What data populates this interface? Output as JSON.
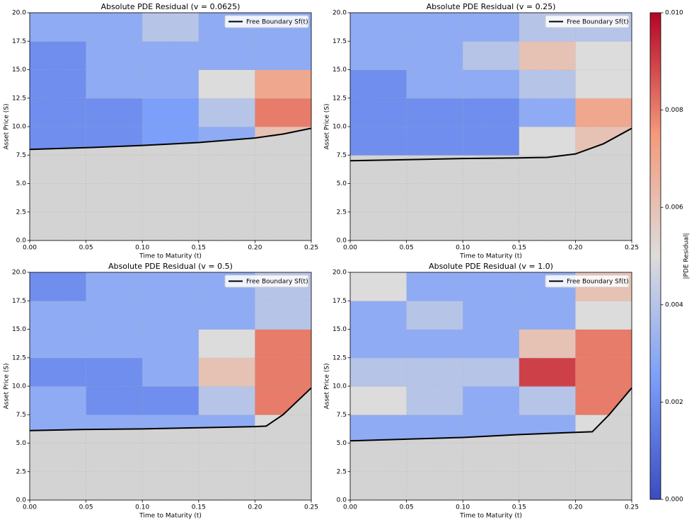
{
  "chart_data": [
    {
      "type": "heatmap",
      "title": "Absolute PDE Residual (v = 0.0625)",
      "xlabel": "Time to Maturity (t)",
      "ylabel": "Asset Price (S)",
      "x_bins": [
        0,
        0.05,
        0.1,
        0.15,
        0.2,
        0.25
      ],
      "y_bins": [
        0,
        2.5,
        5,
        7.5,
        10,
        12.5,
        15,
        17.5,
        20
      ],
      "z": [
        [
          null,
          null,
          null,
          null,
          null
        ],
        [
          null,
          null,
          null,
          null,
          null
        ],
        [
          null,
          null,
          null,
          null,
          null
        ],
        [
          0.002,
          0.002,
          0.0025,
          0.003,
          0.006
        ],
        [
          0.002,
          0.002,
          0.0025,
          0.004,
          0.008
        ],
        [
          0.002,
          0.003,
          0.003,
          0.005,
          0.007
        ],
        [
          0.002,
          0.003,
          0.003,
          0.003,
          0.003
        ],
        [
          0.003,
          0.003,
          0.004,
          0.003,
          0.003
        ]
      ],
      "series": [
        {
          "name": "Free Boundary Sf(t)",
          "color": "#000000",
          "x": [
            0,
            0.05,
            0.1,
            0.15,
            0.2,
            0.225,
            0.25
          ],
          "values": [
            8.0,
            8.15,
            8.35,
            8.6,
            9.0,
            9.35,
            9.85
          ]
        }
      ],
      "xlim": [
        0,
        0.25
      ],
      "ylim": [
        0,
        20
      ],
      "xticks": [
        {
          "value": 0,
          "label": "0.00"
        },
        {
          "value": 0.05,
          "label": "0.05"
        },
        {
          "value": 0.1,
          "label": "0.10"
        },
        {
          "value": 0.15,
          "label": "0.15"
        },
        {
          "value": 0.2,
          "label": "0.20"
        },
        {
          "value": 0.25,
          "label": "0.25"
        }
      ],
      "yticks": [
        {
          "value": 0,
          "label": "0.0"
        },
        2.5,
        {
          "value": 5,
          "label": "5.0"
        },
        7.5,
        {
          "value": 10,
          "label": "10.0"
        },
        12.5,
        {
          "value": 15,
          "label": "15.0"
        },
        17.5,
        {
          "value": 20,
          "label": "20.0"
        }
      ],
      "grid": true,
      "legend": "upper right"
    },
    {
      "type": "heatmap",
      "title": "Absolute PDE Residual (v = 0.25)",
      "xlabel": "Time to Maturity (t)",
      "ylabel": "Asset Price (S)",
      "x_bins": [
        0,
        0.05,
        0.1,
        0.15,
        0.2,
        0.25
      ],
      "y_bins": [
        0,
        2.5,
        5,
        7.5,
        10,
        12.5,
        15,
        17.5,
        20
      ],
      "z": [
        [
          null,
          null,
          null,
          null,
          null
        ],
        [
          null,
          null,
          null,
          null,
          null
        ],
        [
          null,
          null,
          null,
          null,
          null
        ],
        [
          0.002,
          0.002,
          0.002,
          0.005,
          0.006
        ],
        [
          0.002,
          0.002,
          0.002,
          0.003,
          0.007
        ],
        [
          0.002,
          0.003,
          0.003,
          0.004,
          0.005
        ],
        [
          0.003,
          0.003,
          0.004,
          0.006,
          0.005
        ],
        [
          0.003,
          0.003,
          0.003,
          0.004,
          0.004
        ]
      ],
      "series": [
        {
          "name": "Free Boundary Sf(t)",
          "color": "#000000",
          "x": [
            0,
            0.05,
            0.1,
            0.15,
            0.175,
            0.2,
            0.225,
            0.25
          ],
          "values": [
            7.0,
            7.1,
            7.2,
            7.25,
            7.3,
            7.6,
            8.5,
            9.85
          ]
        }
      ],
      "xlim": [
        0,
        0.25
      ],
      "ylim": [
        0,
        20
      ],
      "xticks": [
        {
          "value": 0,
          "label": "0.00"
        },
        {
          "value": 0.05,
          "label": "0.05"
        },
        {
          "value": 0.1,
          "label": "0.10"
        },
        {
          "value": 0.15,
          "label": "0.15"
        },
        {
          "value": 0.2,
          "label": "0.20"
        },
        {
          "value": 0.25,
          "label": "0.25"
        }
      ],
      "yticks": [
        {
          "value": 0,
          "label": "0.0"
        },
        2.5,
        {
          "value": 5,
          "label": "5.0"
        },
        7.5,
        {
          "value": 10,
          "label": "10.0"
        },
        12.5,
        {
          "value": 15,
          "label": "15.0"
        },
        17.5,
        {
          "value": 20,
          "label": "20.0"
        }
      ],
      "grid": true,
      "legend": "upper right"
    },
    {
      "type": "heatmap",
      "title": "Absolute PDE Residual (v = 0.5)",
      "xlabel": "Time to Maturity (t)",
      "ylabel": "Asset Price (S)",
      "x_bins": [
        0,
        0.05,
        0.1,
        0.15,
        0.2,
        0.25
      ],
      "y_bins": [
        0,
        2.5,
        5,
        7.5,
        10,
        12.5,
        15,
        17.5,
        20
      ],
      "z": [
        [
          null,
          null,
          null,
          null,
          null
        ],
        [
          null,
          null,
          null,
          null,
          null
        ],
        [
          0.003,
          0.003,
          0.003,
          0.003,
          0.005
        ],
        [
          0.003,
          0.002,
          0.002,
          0.004,
          0.008
        ],
        [
          0.002,
          0.002,
          0.003,
          0.006,
          0.008
        ],
        [
          0.003,
          0.003,
          0.003,
          0.005,
          0.008
        ],
        [
          0.003,
          0.003,
          0.003,
          0.003,
          0.004
        ],
        [
          0.002,
          0.003,
          0.003,
          0.003,
          0.004
        ]
      ],
      "series": [
        {
          "name": "Free Boundary Sf(t)",
          "color": "#000000",
          "x": [
            0,
            0.05,
            0.1,
            0.15,
            0.2,
            0.21,
            0.225,
            0.25
          ],
          "values": [
            6.1,
            6.2,
            6.25,
            6.35,
            6.45,
            6.5,
            7.5,
            9.85
          ]
        }
      ],
      "xlim": [
        0,
        0.25
      ],
      "ylim": [
        0,
        20
      ],
      "xticks": [
        {
          "value": 0,
          "label": "0.00"
        },
        {
          "value": 0.05,
          "label": "0.05"
        },
        {
          "value": 0.1,
          "label": "0.10"
        },
        {
          "value": 0.15,
          "label": "0.15"
        },
        {
          "value": 0.2,
          "label": "0.20"
        },
        {
          "value": 0.25,
          "label": "0.25"
        }
      ],
      "yticks": [
        {
          "value": 0,
          "label": "0.0"
        },
        2.5,
        {
          "value": 5,
          "label": "5.0"
        },
        7.5,
        {
          "value": 10,
          "label": "10.0"
        },
        12.5,
        {
          "value": 15,
          "label": "15.0"
        },
        17.5,
        {
          "value": 20,
          "label": "20.0"
        }
      ],
      "grid": true,
      "legend": "upper right"
    },
    {
      "type": "heatmap",
      "title": "Absolute PDE Residual (v = 1.0)",
      "xlabel": "Time to Maturity (t)",
      "ylabel": "Asset Price (S)",
      "x_bins": [
        0,
        0.05,
        0.1,
        0.15,
        0.2,
        0.25
      ],
      "y_bins": [
        0,
        2.5,
        5,
        7.5,
        10,
        12.5,
        15,
        17.5,
        20
      ],
      "z": [
        [
          null,
          null,
          null,
          null,
          null
        ],
        [
          null,
          null,
          null,
          null,
          null
        ],
        [
          0.003,
          0.003,
          0.003,
          0.003,
          0.005
        ],
        [
          0.005,
          0.004,
          0.003,
          0.004,
          0.008
        ],
        [
          0.004,
          0.004,
          0.004,
          0.009,
          0.008
        ],
        [
          0.003,
          0.003,
          0.003,
          0.006,
          0.008
        ],
        [
          0.003,
          0.004,
          0.003,
          0.003,
          0.005
        ],
        [
          0.005,
          0.003,
          0.003,
          0.003,
          0.006
        ]
      ],
      "series": [
        {
          "name": "Free Boundary Sf(t)",
          "color": "#000000",
          "x": [
            0,
            0.05,
            0.1,
            0.15,
            0.2,
            0.215,
            0.23,
            0.25
          ],
          "values": [
            5.2,
            5.35,
            5.5,
            5.75,
            5.95,
            6.0,
            7.5,
            9.85
          ]
        }
      ],
      "xlim": [
        0,
        0.25
      ],
      "ylim": [
        0,
        20
      ],
      "xticks": [
        {
          "value": 0,
          "label": "0.00"
        },
        {
          "value": 0.05,
          "label": "0.05"
        },
        {
          "value": 0.1,
          "label": "0.10"
        },
        {
          "value": 0.15,
          "label": "0.15"
        },
        {
          "value": 0.2,
          "label": "0.20"
        },
        {
          "value": 0.25,
          "label": "0.25"
        }
      ],
      "yticks": [
        {
          "value": 0,
          "label": "0.0"
        },
        2.5,
        {
          "value": 5,
          "label": "5.0"
        },
        7.5,
        {
          "value": 10,
          "label": "10.0"
        },
        12.5,
        {
          "value": 15,
          "label": "15.0"
        },
        17.5,
        {
          "value": 20,
          "label": "20.0"
        }
      ],
      "grid": true,
      "legend": "upper right"
    }
  ],
  "colorbar": {
    "label": "|PDE Residual|",
    "lim": [
      0,
      0.01
    ],
    "ticks": [
      {
        "value": 0,
        "label": "0.000"
      },
      {
        "value": 0.002,
        "label": "0.002"
      },
      {
        "value": 0.004,
        "label": "0.004"
      },
      {
        "value": 0.006,
        "label": "0.006"
      },
      {
        "value": 0.008,
        "label": "0.008"
      },
      {
        "value": 0.01,
        "label": "0.010"
      }
    ]
  }
}
